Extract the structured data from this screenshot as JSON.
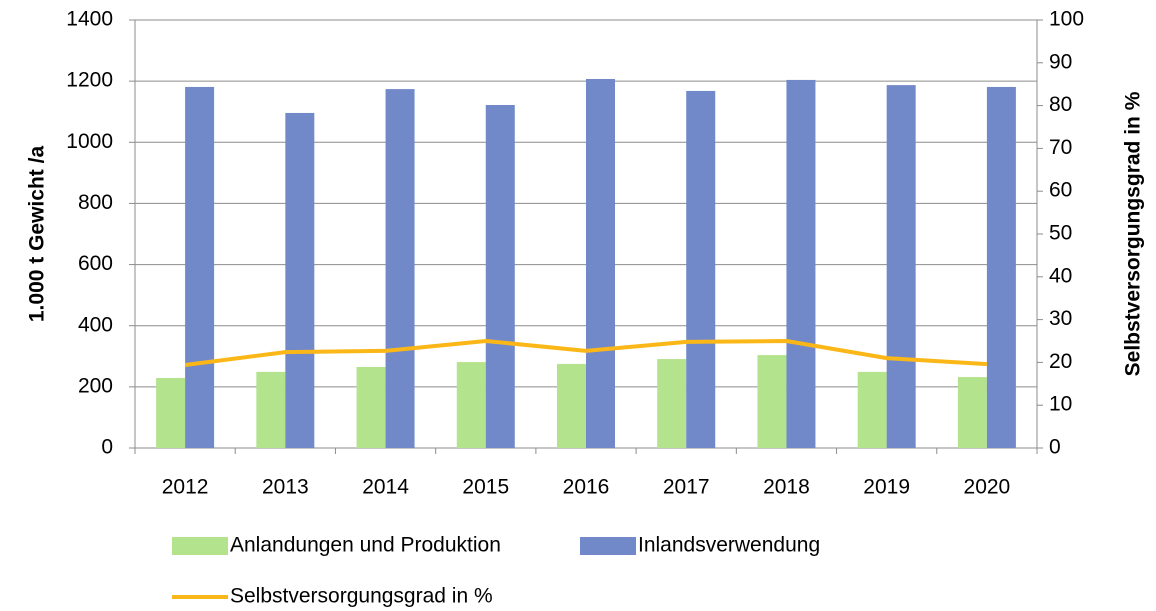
{
  "chart_data": {
    "type": "bar",
    "y_label": "1.000 t Gewicht /a",
    "y2_label": "Selbstversorgungsgrad in %",
    "categories": [
      "2012",
      "2013",
      "2014",
      "2015",
      "2016",
      "2017",
      "2018",
      "2019",
      "2020"
    ],
    "series": [
      {
        "name": "Anlandungen und Produktion",
        "color": "#b3e38c",
        "values": [
          229,
          249,
          265,
          281,
          275,
          291,
          304,
          249,
          232
        ]
      },
      {
        "name": "Inlandsverwendung",
        "color": "#7189c9",
        "values": [
          1181,
          1096,
          1174,
          1122,
          1207,
          1168,
          1204,
          1187,
          1181
        ]
      },
      {
        "name": "Selbstversorgungsgrad in %",
        "color": "#fbb717",
        "type": "line",
        "axis": "y2",
        "values": [
          19.4,
          22.4,
          22.7,
          25,
          22.7,
          24.8,
          25,
          21,
          19.6
        ]
      }
    ],
    "ylim": [
      0,
      1400
    ],
    "yticks": [
      0,
      200,
      400,
      600,
      800,
      1000,
      1200,
      1400
    ],
    "y2lim": [
      0,
      100
    ],
    "y2ticks": [
      0,
      10,
      20,
      30,
      40,
      50,
      60,
      70,
      80,
      90,
      100
    ],
    "grid": true
  }
}
